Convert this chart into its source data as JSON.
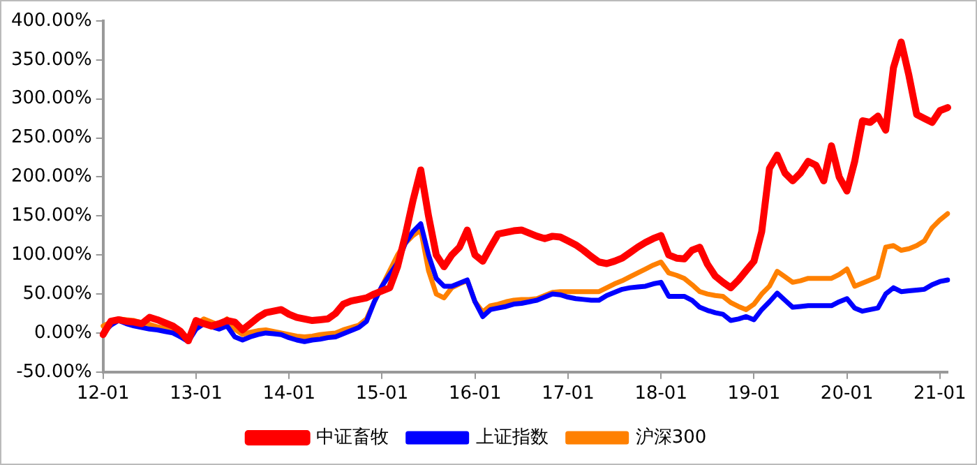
{
  "chart_data": {
    "type": "line",
    "categories": [
      "12-01",
      null,
      null,
      null,
      null,
      null,
      null,
      null,
      null,
      null,
      null,
      null,
      "13-01",
      null,
      null,
      null,
      null,
      null,
      null,
      null,
      null,
      null,
      null,
      null,
      "14-01",
      null,
      null,
      null,
      null,
      null,
      null,
      null,
      null,
      null,
      null,
      null,
      "15-01",
      null,
      null,
      null,
      null,
      null,
      null,
      null,
      null,
      null,
      null,
      null,
      "16-01",
      null,
      null,
      null,
      null,
      null,
      null,
      null,
      null,
      null,
      null,
      null,
      "17-01",
      null,
      null,
      null,
      null,
      null,
      null,
      null,
      null,
      null,
      null,
      null,
      "18-01",
      null,
      null,
      null,
      null,
      null,
      null,
      null,
      null,
      null,
      null,
      null,
      "19-01",
      null,
      null,
      null,
      null,
      null,
      null,
      null,
      null,
      null,
      null,
      null,
      "20-01",
      null,
      null,
      null,
      null,
      null,
      null,
      null,
      null,
      null,
      null,
      null,
      "21-01",
      null
    ],
    "series": [
      {
        "name": "中证畜牧",
        "color": "#ff0000",
        "values": [
          -2,
          15,
          17,
          15,
          14,
          12,
          20,
          17,
          13,
          9,
          2,
          -10,
          16,
          12,
          9,
          12,
          16,
          14,
          4,
          12,
          20,
          26,
          28,
          30,
          24,
          20,
          18,
          16,
          17,
          18,
          25,
          37,
          41,
          43,
          45,
          50,
          54,
          58,
          85,
          125,
          170,
          209,
          150,
          100,
          85,
          100,
          110,
          132,
          100,
          92,
          110,
          127,
          129,
          131,
          132,
          128,
          124,
          121,
          124,
          123,
          118,
          113,
          106,
          98,
          91,
          89,
          92,
          96,
          103,
          110,
          116,
          121,
          125,
          100,
          96,
          95,
          106,
          110,
          88,
          73,
          65,
          58,
          68,
          80,
          92,
          130,
          211,
          228,
          205,
          195,
          205,
          220,
          215,
          195,
          240,
          200,
          182,
          220,
          272,
          270,
          278,
          260,
          340,
          373,
          330,
          280,
          275,
          270,
          285,
          289
        ]
      },
      {
        "name": "上证指数",
        "color": "#0000ff",
        "values": [
          0,
          10,
          16,
          12,
          9,
          7,
          5,
          4,
          2,
          0,
          -5,
          -11,
          5,
          12,
          8,
          5,
          9,
          -5,
          -9,
          -5,
          -2,
          0,
          -1,
          -2,
          -6,
          -9,
          -11,
          -9,
          -8,
          -6,
          -5,
          -1,
          3,
          7,
          15,
          40,
          60,
          75,
          90,
          115,
          130,
          140,
          100,
          70,
          60,
          60,
          64,
          68,
          40,
          21,
          30,
          32,
          34,
          37,
          38,
          40,
          42,
          46,
          50,
          49,
          46,
          44,
          43,
          42,
          42,
          48,
          52,
          56,
          58,
          59,
          60,
          63,
          65,
          47,
          47,
          47,
          42,
          33,
          29,
          26,
          24,
          16,
          18,
          21,
          17,
          30,
          40,
          51,
          42,
          33,
          34,
          35,
          35,
          35,
          35,
          40,
          44,
          32,
          28,
          30,
          32,
          50,
          58,
          53,
          54,
          55,
          56,
          62,
          66,
          68
        ]
      },
      {
        "name": "沪深300",
        "color": "#ff8000",
        "values": [
          9,
          14,
          18,
          17,
          16,
          13,
          11,
          8,
          6,
          4,
          -2,
          -9,
          10,
          18,
          14,
          10,
          18,
          5,
          -2,
          1,
          3,
          4,
          2,
          0,
          -2,
          -4,
          -5,
          -4,
          -2,
          -1,
          0,
          4,
          7,
          10,
          18,
          40,
          60,
          80,
          100,
          115,
          125,
          132,
          80,
          50,
          45,
          58,
          63,
          67,
          40,
          27,
          35,
          37,
          40,
          42,
          43,
          43,
          44,
          48,
          52,
          53,
          53,
          53,
          53,
          53,
          53,
          58,
          63,
          67,
          72,
          77,
          82,
          87,
          91,
          77,
          74,
          70,
          62,
          53,
          50,
          48,
          47,
          39,
          34,
          30,
          37,
          50,
          60,
          79,
          72,
          65,
          67,
          70,
          70,
          70,
          70,
          75,
          82,
          60,
          64,
          68,
          72,
          110,
          112,
          106,
          108,
          112,
          118,
          135,
          145,
          153
        ]
      }
    ],
    "ylim": [
      -50,
      400
    ],
    "yticks": [
      {
        "value": -50,
        "label": "-50.00%"
      },
      {
        "value": 0,
        "label": "0.00%"
      },
      {
        "value": 50,
        "label": "50.00%"
      },
      {
        "value": 100,
        "label": "100.00%"
      },
      {
        "value": 150,
        "label": "150.00%"
      },
      {
        "value": 200,
        "label": "200.00%"
      },
      {
        "value": 250,
        "label": "250.00%"
      },
      {
        "value": 300,
        "label": "300.00%"
      },
      {
        "value": 350,
        "label": "350.00%"
      },
      {
        "value": 400,
        "label": "400.00%"
      }
    ],
    "grid": false,
    "legend": "bottom",
    "marker": "none",
    "line_style": "solid"
  }
}
